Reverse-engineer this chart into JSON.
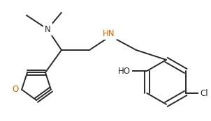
{
  "bg_color": "#ffffff",
  "line_color": "#2a2a2a",
  "text_color": "#2a2a2a",
  "hn_color": "#cc6600",
  "o_color": "#cc6600",
  "bond_lw": 1.4,
  "font_size": 8.5,
  "figsize": [
    3.02,
    1.74
  ],
  "dpi": 100,
  "xlim": [
    0,
    302
  ],
  "ylim": [
    0,
    174
  ]
}
